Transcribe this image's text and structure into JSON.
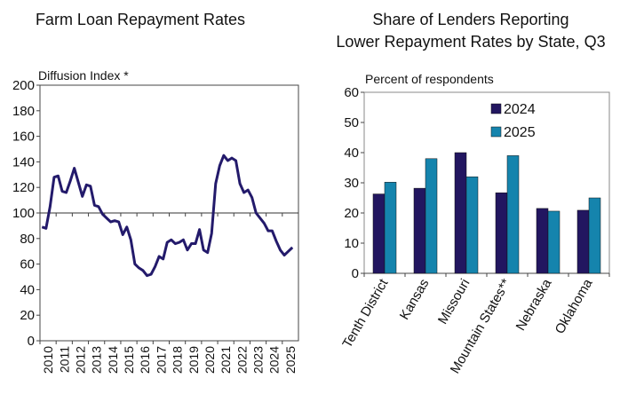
{
  "chart_data": [
    {
      "type": "line",
      "title": "Farm Loan Repayment Rates",
      "ylabel": "Diffusion Index *",
      "ylim": [
        0,
        200
      ],
      "yticks": [
        0,
        20,
        40,
        60,
        80,
        100,
        120,
        140,
        160,
        180,
        200
      ],
      "reference_line": 100,
      "xtick_labels": [
        "2010",
        "2011",
        "2012",
        "2013",
        "2014",
        "2015",
        "2016",
        "2017",
        "2018",
        "2019",
        "2020",
        "2021",
        "2022",
        "2023",
        "2024",
        "2025"
      ],
      "x_start": "2010 Q1",
      "frequency": "quarterly",
      "color": "#231a6b",
      "values": [
        89,
        88,
        105,
        128,
        129,
        117,
        116,
        125,
        135,
        124,
        113,
        122,
        121,
        106,
        105,
        99,
        96,
        93,
        94,
        93,
        83,
        89,
        79,
        60,
        57,
        55,
        51,
        52,
        58,
        66,
        64,
        77,
        79,
        76,
        77,
        79,
        71,
        76,
        76,
        87,
        71,
        69,
        84,
        123,
        137,
        145,
        141,
        143,
        141,
        123,
        116,
        118,
        112,
        100,
        96,
        92,
        86,
        86,
        78,
        71,
        67,
        70,
        73
      ]
    },
    {
      "type": "bar",
      "title": "Share of Lenders Reporting Lower Repayment Rates by State, Q3",
      "ylabel": "Percent of respondents",
      "ylim": [
        0,
        60
      ],
      "yticks": [
        0,
        10,
        20,
        30,
        40,
        50,
        60
      ],
      "categories": [
        "Tenth District",
        "Kansas",
        "Missouri",
        "Mountain States**",
        "Nebraska",
        "Oklahoma"
      ],
      "legend_position": "top-center",
      "series": [
        {
          "name": "2024",
          "color": "#221660",
          "values": [
            26.3,
            28.2,
            40,
            26.7,
            21.5,
            20.9
          ]
        },
        {
          "name": "2025",
          "color": "#1584ad",
          "values": [
            30.2,
            38,
            32,
            39,
            20.6,
            25
          ]
        }
      ]
    }
  ]
}
